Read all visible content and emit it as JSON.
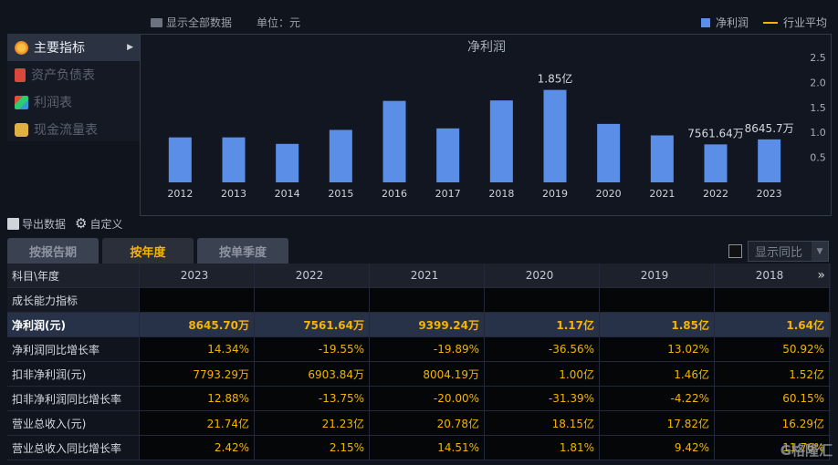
{
  "topbar": {
    "show_all": "显示全部数据",
    "unit": "单位：元"
  },
  "legend": {
    "bar_label": "净利润",
    "line_label": "行业平均"
  },
  "menu": [
    {
      "label": "主要指标",
      "icon": "gear-flower-icon",
      "active": true
    },
    {
      "label": "资产负债表",
      "icon": "document-icon"
    },
    {
      "label": "利润表",
      "icon": "cube-icon"
    },
    {
      "label": "现金流量表",
      "icon": "coins-icon"
    }
  ],
  "colors": {
    "bar": "#5b8ee6",
    "accent": "#f5b400",
    "line": "#f5b400"
  },
  "chart_data": {
    "type": "bar",
    "title": "净利润",
    "categories": [
      "2012",
      "2013",
      "2014",
      "2015",
      "2016",
      "2017",
      "2018",
      "2019",
      "2020",
      "2021",
      "2022",
      "2023"
    ],
    "values": [
      0.9,
      0.9,
      0.77,
      1.05,
      1.63,
      1.08,
      1.64,
      1.85,
      1.17,
      0.94,
      0.76,
      0.86
    ],
    "unit": "亿",
    "ylim": [
      0,
      2.5
    ],
    "yticks": [
      "0.5",
      "1.0",
      "1.5",
      "2.0",
      "2.5"
    ],
    "yaxis_side": "right",
    "data_labels": [
      {
        "category": "2019",
        "text": "1.85亿"
      },
      {
        "category": "2022",
        "text": "7561.64万"
      },
      {
        "category": "2023",
        "text": "8645.7万"
      }
    ]
  },
  "tools": {
    "export": "导出数据",
    "customize": "自定义"
  },
  "tabs": [
    "按报告期",
    "按年度",
    "按单季度"
  ],
  "active_tab": 1,
  "compare": {
    "label": "显示同比"
  },
  "table": {
    "header_label": "科目\\年度",
    "years": [
      "2023",
      "2022",
      "2021",
      "2020",
      "2019",
      "2018"
    ],
    "section": "成长能力指标",
    "rows": [
      {
        "label": "净利润(元)",
        "highlight": true,
        "values": [
          "8645.70万",
          "7561.64万",
          "9399.24万",
          "1.17亿",
          "1.85亿",
          "1.64亿"
        ]
      },
      {
        "label": "净利润同比增长率",
        "values": [
          "14.34%",
          "-19.55%",
          "-19.89%",
          "-36.56%",
          "13.02%",
          "50.92%"
        ]
      },
      {
        "label": "扣非净利润(元)",
        "values": [
          "7793.29万",
          "6903.84万",
          "8004.19万",
          "1.00亿",
          "1.46亿",
          "1.52亿"
        ]
      },
      {
        "label": "扣非净利润同比增长率",
        "values": [
          "12.88%",
          "-13.75%",
          "-20.00%",
          "-31.39%",
          "-4.22%",
          "60.15%"
        ]
      },
      {
        "label": "营业总收入(元)",
        "values": [
          "21.74亿",
          "21.23亿",
          "20.78亿",
          "18.15亿",
          "17.82亿",
          "16.29亿"
        ]
      },
      {
        "label": "营业总收入同比增长率",
        "values": [
          "2.42%",
          "2.15%",
          "14.51%",
          "1.81%",
          "9.42%",
          "11.76%"
        ]
      }
    ]
  },
  "watermark": "G格隆汇"
}
